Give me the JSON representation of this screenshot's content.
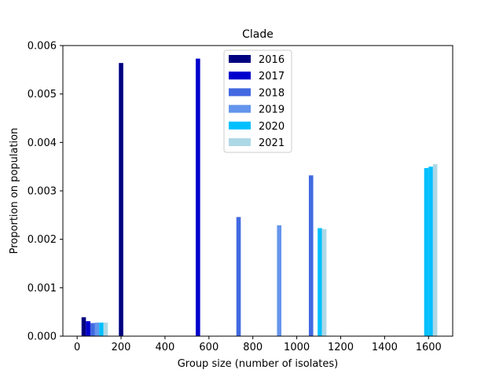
{
  "chart_data": {
    "type": "bar",
    "title": "Clade",
    "xlabel": "Group size (number of isolates)",
    "ylabel": "Proportion on population",
    "xlim": [
      -65,
      1710
    ],
    "ylim": [
      0,
      0.006
    ],
    "xticks": [
      0,
      200,
      400,
      600,
      800,
      1000,
      1200,
      1400,
      1600
    ],
    "xtick_labels": [
      "0",
      "200",
      "400",
      "600",
      "800",
      "1000",
      "1200",
      "1400",
      "1600"
    ],
    "yticks": [
      0,
      0.001,
      0.002,
      0.003,
      0.004,
      0.005,
      0.006
    ],
    "ytick_labels": [
      "0.000",
      "0.001",
      "0.002",
      "0.003",
      "0.004",
      "0.005",
      "0.006"
    ],
    "grid": false,
    "legend_position": "top-center",
    "bar_width": 20,
    "series": [
      {
        "name": "2016",
        "color": "#000080",
        "points": [
          {
            "x": 30,
            "y": 0.00039
          },
          {
            "x": 200,
            "y": 0.00564
          }
        ]
      },
      {
        "name": "2017",
        "color": "#0000cd",
        "points": [
          {
            "x": 50,
            "y": 0.00031
          },
          {
            "x": 550,
            "y": 0.00573
          }
        ]
      },
      {
        "name": "2018",
        "color": "#4169e1",
        "points": [
          {
            "x": 70,
            "y": 0.00027
          },
          {
            "x": 735,
            "y": 0.00246
          },
          {
            "x": 1065,
            "y": 0.00332
          }
        ]
      },
      {
        "name": "2019",
        "color": "#6495ed",
        "points": [
          {
            "x": 90,
            "y": 0.00028
          },
          {
            "x": 920,
            "y": 0.00229
          }
        ]
      },
      {
        "name": "2020",
        "color": "#00bfff",
        "points": [
          {
            "x": 110,
            "y": 0.00028
          },
          {
            "x": 1105,
            "y": 0.00223
          },
          {
            "x": 1590,
            "y": 0.00347
          },
          {
            "x": 1610,
            "y": 0.0035
          }
        ]
      },
      {
        "name": "2021",
        "color": "#add8e6",
        "points": [
          {
            "x": 130,
            "y": 0.00028
          },
          {
            "x": 1125,
            "y": 0.00221
          },
          {
            "x": 1630,
            "y": 0.00355
          }
        ]
      }
    ]
  }
}
